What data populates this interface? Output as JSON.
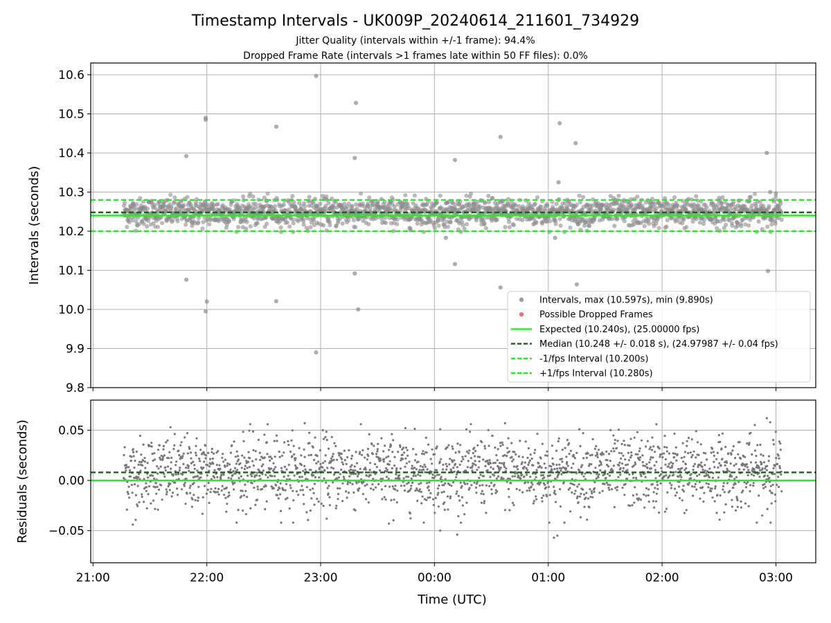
{
  "chart_data": {
    "type": "scatter",
    "title": "Timestamp Intervals - UK009P_20240614_211601_734929",
    "subtitle": [
      "Jitter Quality (intervals within +/-1 frame): 94.4%",
      "Dropped Frame Rate (intervals >1 frames late within 50 FF files): 0.0%"
    ],
    "xlabel": "Time (UTC)",
    "x_ticks": [
      "21:00",
      "22:00",
      "23:00",
      "00:00",
      "01:00",
      "02:00",
      "03:00"
    ],
    "x_range_hours_utc": [
      20.98,
      27.35
    ],
    "x_data_range_hours_utc": [
      21.27,
      27.05
    ],
    "grid": true,
    "legend": {
      "placement": "lower-right of upper panel",
      "entries": [
        "Intervals, max (10.597s), min (9.890s)",
        "Possible Dropped Frames",
        "Expected (10.240s), (25.00000 fps)",
        "Median (10.248 +/- 0.018 s), (24.97987 +/- 0.04 fps)",
        "-1/fps Interval (10.200s)",
        "+1/fps Interval (10.280s)"
      ]
    },
    "panels": [
      {
        "name": "intervals",
        "ylabel": "Intervals (seconds)",
        "ylim": [
          9.8,
          10.63
        ],
        "y_ticks": [
          "9.8",
          "9.9",
          "10.0",
          "10.1",
          "10.2",
          "10.3",
          "10.4",
          "10.5",
          "10.6"
        ],
        "lines": [
          {
            "label": "Expected",
            "value": 10.24,
            "style": "solid",
            "color": "#22ee22"
          },
          {
            "label": "Median",
            "value": 10.248,
            "style": "dashed",
            "color": "#116611"
          },
          {
            "label": "-1/fps Interval",
            "value": 10.2,
            "style": "dashed",
            "color": "#22ee22"
          },
          {
            "label": "+1/fps Interval",
            "value": 10.28,
            "style": "dashed",
            "color": "#22ee22"
          }
        ],
        "bulk": {
          "center": 10.248,
          "spread": 0.018,
          "count": 2040
        },
        "outliers": [
          [
            21.82,
            10.392
          ],
          [
            21.82,
            10.076
          ],
          [
            21.99,
            10.49
          ],
          [
            21.99,
            10.485
          ],
          [
            22.0,
            10.02
          ],
          [
            21.99,
            9.995
          ],
          [
            22.61,
            10.467
          ],
          [
            22.61,
            10.021
          ],
          [
            22.96,
            10.597
          ],
          [
            22.96,
            9.89
          ],
          [
            23.31,
            10.528
          ],
          [
            23.3,
            10.387
          ],
          [
            23.3,
            10.092
          ],
          [
            23.33,
            10.0
          ],
          [
            24.18,
            10.382
          ],
          [
            24.18,
            10.116
          ],
          [
            24.1,
            10.183
          ],
          [
            24.58,
            10.441
          ],
          [
            24.58,
            10.056
          ],
          [
            25.1,
            10.476
          ],
          [
            25.09,
            10.325
          ],
          [
            25.24,
            10.425
          ],
          [
            25.25,
            10.064
          ],
          [
            25.06,
            10.183
          ],
          [
            26.92,
            10.4
          ],
          [
            26.93,
            10.098
          ],
          [
            26.95,
            10.3
          ],
          [
            27.0,
            10.297
          ]
        ]
      },
      {
        "name": "residuals",
        "ylabel": "Residuals (seconds)",
        "ylim": [
          -0.082,
          0.08
        ],
        "y_ticks": [
          "−0.05",
          "0.00",
          "0.05"
        ],
        "lines": [
          {
            "label": "Expected",
            "value": 0.0,
            "style": "solid",
            "color": "#22ee22"
          },
          {
            "label": "Median",
            "value": 0.008,
            "style": "dashed",
            "color": "#116611"
          }
        ],
        "outliers": [
          [
            21.35,
            -0.044
          ],
          [
            22.86,
            0.057
          ],
          [
            23.6,
            -0.043
          ],
          [
            24.2,
            -0.054
          ],
          [
            24.05,
            -0.05
          ],
          [
            25.05,
            -0.057
          ],
          [
            25.08,
            -0.055
          ],
          [
            26.92,
            0.062
          ],
          [
            26.95,
            0.058
          ],
          [
            25.95,
            0.056
          ],
          [
            24.62,
            0.057
          ]
        ]
      }
    ],
    "colors": {
      "intervals": "#8c8c8c",
      "dropped": "#ee5555",
      "expected": "#22ee22",
      "median": "#116611",
      "bounds": "#22ee22",
      "grid": "#b0b0b0"
    }
  }
}
